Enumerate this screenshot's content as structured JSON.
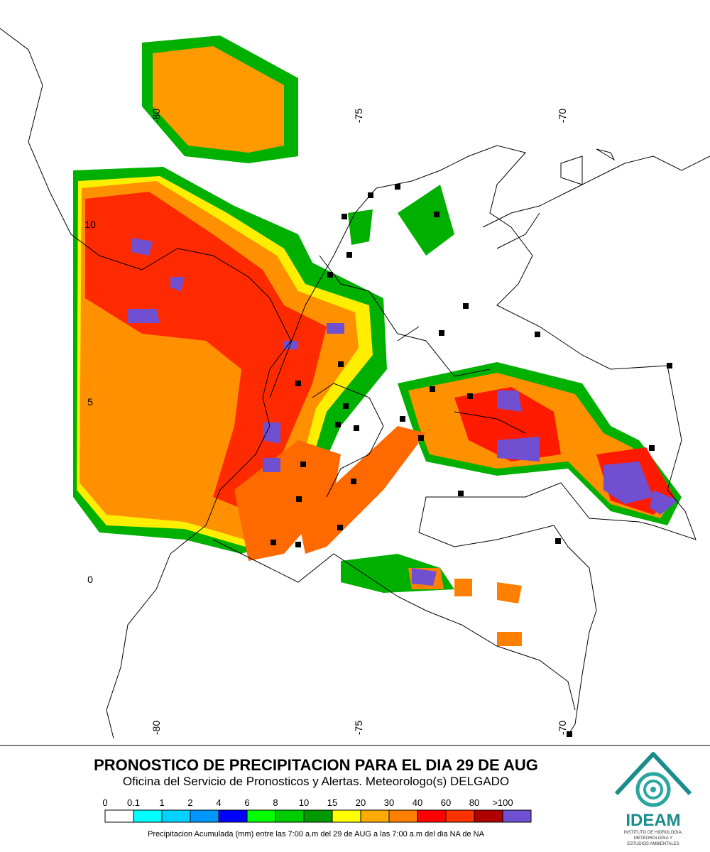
{
  "map": {
    "lon_labels_top": [
      "-80",
      "-75",
      "-70"
    ],
    "lon_labels_bottom": [
      "-80",
      "-75",
      "-70"
    ],
    "lat_labels": [
      "10",
      "5",
      "0"
    ]
  },
  "header": {
    "title": "PRONOSTICO DE PRECIPITACION PARA EL DIA 29 DE AUG",
    "subtitle": "Oficina del Servicio de Pronosticos y Alertas. Meteorologo(s) DELGADO"
  },
  "legend": {
    "labels": [
      "0",
      "0.1",
      "1",
      "2",
      "4",
      "6",
      "8",
      "10",
      "15",
      "20",
      "30",
      "40",
      "60",
      "80",
      ">100"
    ],
    "colors": [
      "#ffffff",
      "#00ffff",
      "#00d2ff",
      "#0096ff",
      "#0000ff",
      "#00ff00",
      "#00cc00",
      "#009900",
      "#ffff00",
      "#ffaa00",
      "#ff8000",
      "#ff0000",
      "#ff3300",
      "#b00000",
      "#7050d0"
    ],
    "caption": "Precipitacion Acumulada (mm) entre las 7:00 a.m del 29 de AUG a las 7:00 a.m del dia NA de NA"
  },
  "logo": {
    "name": "IDEAM",
    "line1": "INSTITUTO DE HIDROLOGIA,",
    "line2": "METEOROLOGIA Y",
    "line3": "ESTUDIOS AMBIENTALES"
  }
}
